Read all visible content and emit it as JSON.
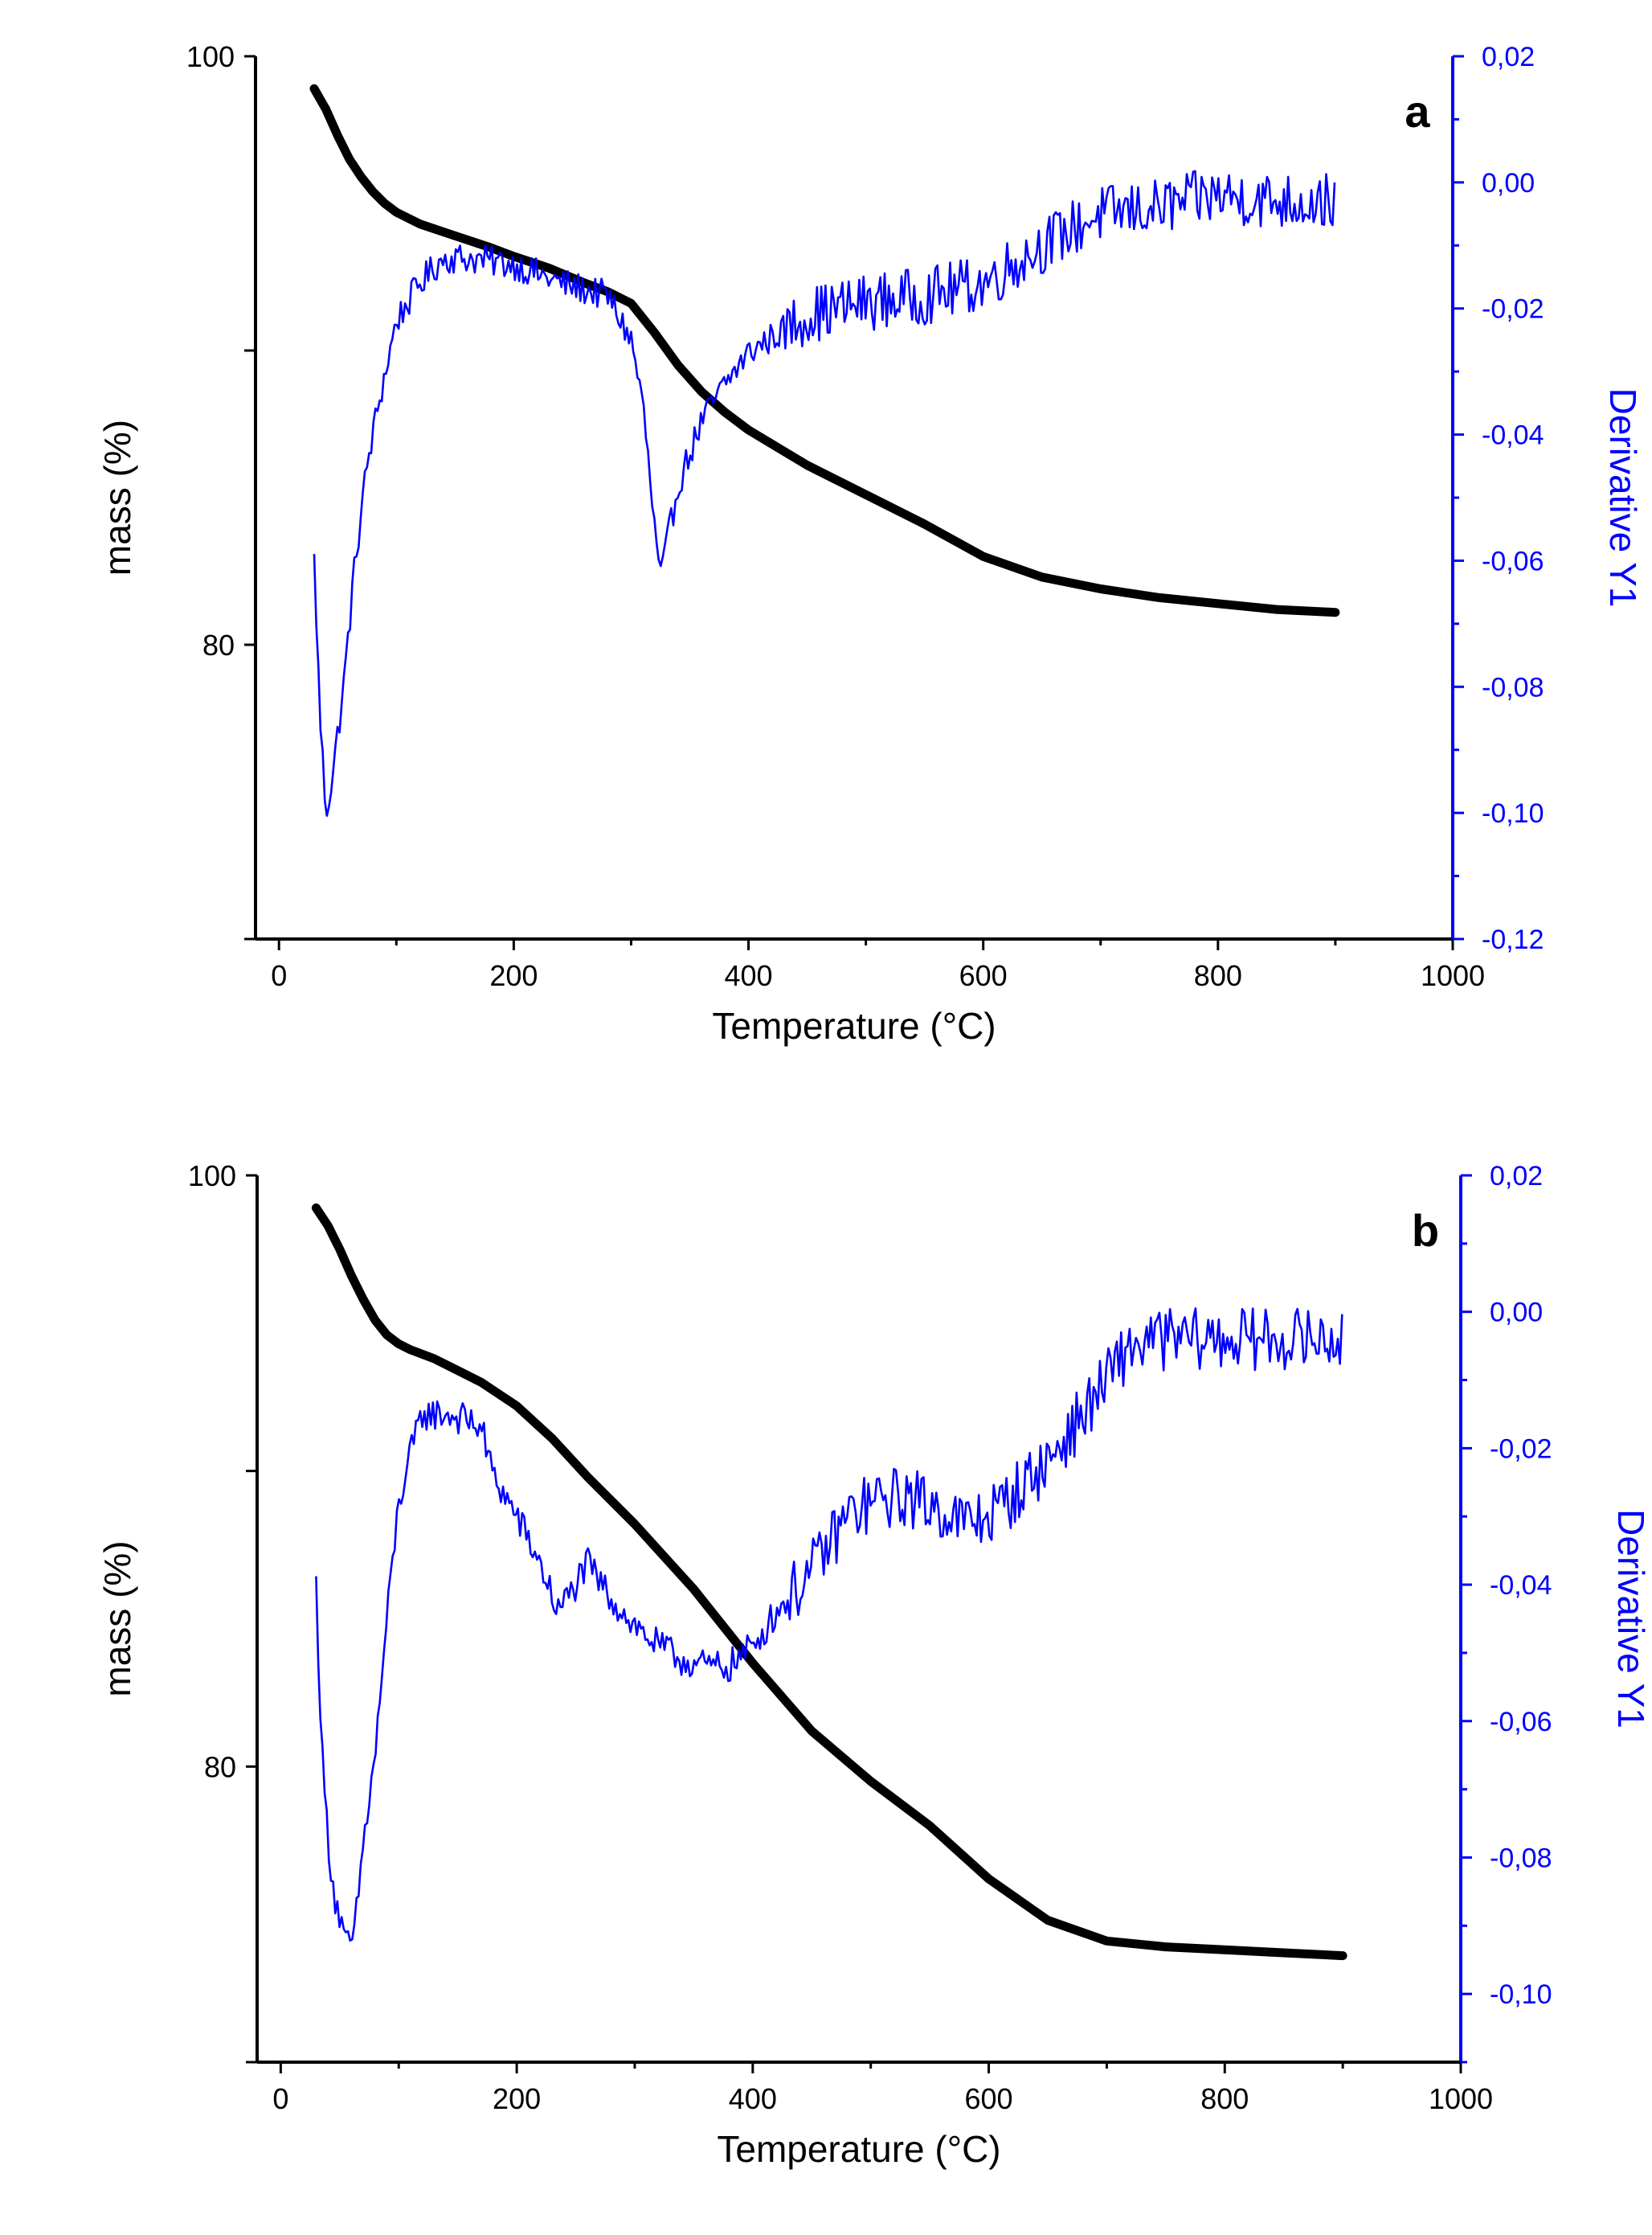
{
  "chart_data": [
    {
      "type": "line",
      "panel_label": "a",
      "xlabel": "Temperature (°C)",
      "ylabel": "mass (%)",
      "y2label": "Derivative Y1",
      "xlim": [
        -20,
        1000
      ],
      "ylim": [
        70,
        100
      ],
      "y2lim": [
        -0.12,
        0.02
      ],
      "x_ticks": [
        "0",
        "200",
        "400",
        "600",
        "800",
        "1000"
      ],
      "y_ticks": [
        "80",
        "100"
      ],
      "y2_ticks": [
        "0,02",
        "0,00",
        "-0,02",
        "-0,04",
        "-0,06",
        "-0,08",
        "-0,10",
        "-0,12"
      ],
      "colors": {
        "mass": "#000000",
        "derivative": "#0000ff"
      },
      "series": [
        {
          "name": "mass",
          "axis": "left",
          "x": [
            30,
            40,
            50,
            60,
            70,
            80,
            90,
            100,
            120,
            150,
            180,
            200,
            230,
            260,
            280,
            300,
            310,
            320,
            340,
            360,
            380,
            400,
            450,
            500,
            550,
            600,
            650,
            700,
            750,
            800,
            850,
            900
          ],
          "y": [
            98.9,
            98.2,
            97.3,
            96.5,
            95.9,
            95.4,
            95.0,
            94.7,
            94.3,
            93.9,
            93.5,
            93.2,
            92.8,
            92.3,
            92.0,
            91.6,
            91.1,
            90.6,
            89.5,
            88.6,
            87.9,
            87.3,
            86.1,
            85.1,
            84.1,
            83.0,
            82.3,
            81.9,
            81.6,
            81.4,
            81.2,
            81.1
          ]
        },
        {
          "name": "Derivative Y1",
          "axis": "right",
          "x": [
            30,
            35,
            40,
            45,
            55,
            65,
            75,
            85,
            100,
            120,
            140,
            160,
            200,
            240,
            280,
            300,
            310,
            320,
            325,
            330,
            340,
            360,
            380,
            400,
            450,
            500,
            550,
            600,
            650,
            700,
            750,
            800,
            850,
            900
          ],
          "y": [
            -0.06,
            -0.085,
            -0.1,
            -0.095,
            -0.08,
            -0.06,
            -0.045,
            -0.035,
            -0.022,
            -0.016,
            -0.012,
            -0.012,
            -0.013,
            -0.016,
            -0.018,
            -0.025,
            -0.035,
            -0.055,
            -0.063,
            -0.058,
            -0.048,
            -0.038,
            -0.032,
            -0.027,
            -0.021,
            -0.019,
            -0.018,
            -0.016,
            -0.01,
            -0.005,
            -0.004,
            -0.002,
            -0.003,
            -0.003
          ],
          "noise": 0.0035
        }
      ]
    },
    {
      "type": "line",
      "panel_label": "b",
      "xlabel": "Temperature (°C)",
      "ylabel": "mass (%)",
      "y2label": "Derivative Y1",
      "xlim": [
        -20,
        1000
      ],
      "ylim": [
        70,
        100
      ],
      "y2lim": [
        -0.11,
        0.02
      ],
      "x_ticks": [
        "0",
        "200",
        "400",
        "600",
        "800",
        "1000"
      ],
      "y_ticks": [
        "80",
        "100"
      ],
      "y2_ticks": [
        "0,02",
        "0,00",
        "-0,02",
        "-0,04",
        "-0,06",
        "-0,08",
        "-0,10"
      ],
      "colors": {
        "mass": "#000000",
        "derivative": "#0000ff"
      },
      "series": [
        {
          "name": "mass",
          "axis": "left",
          "x": [
            30,
            40,
            50,
            60,
            70,
            80,
            90,
            100,
            110,
            130,
            150,
            170,
            200,
            230,
            260,
            300,
            350,
            400,
            450,
            500,
            550,
            600,
            650,
            700,
            750,
            800,
            850,
            900
          ],
          "y": [
            98.9,
            98.3,
            97.5,
            96.6,
            95.8,
            95.1,
            94.6,
            94.3,
            94.1,
            93.8,
            93.4,
            93.0,
            92.2,
            91.1,
            89.8,
            88.2,
            86.0,
            83.5,
            81.2,
            79.5,
            78.0,
            76.2,
            74.8,
            74.1,
            73.9,
            73.8,
            73.7,
            73.6
          ]
        },
        {
          "name": "Derivative Y1",
          "axis": "right",
          "x": [
            30,
            35,
            40,
            45,
            55,
            62,
            70,
            80,
            90,
            100,
            110,
            120,
            140,
            160,
            170,
            180,
            200,
            220,
            235,
            250,
            260,
            280,
            300,
            320,
            340,
            360,
            380,
            400,
            420,
            450,
            480,
            500,
            530,
            560,
            580,
            600,
            620,
            650,
            680,
            700,
            720,
            750,
            800,
            850,
            900
          ],
          "y": [
            -0.04,
            -0.065,
            -0.077,
            -0.085,
            -0.093,
            -0.092,
            -0.078,
            -0.065,
            -0.045,
            -0.028,
            -0.021,
            -0.015,
            -0.015,
            -0.016,
            -0.017,
            -0.024,
            -0.03,
            -0.037,
            -0.044,
            -0.04,
            -0.037,
            -0.042,
            -0.046,
            -0.049,
            -0.051,
            -0.052,
            -0.052,
            -0.049,
            -0.044,
            -0.038,
            -0.03,
            -0.028,
            -0.027,
            -0.029,
            -0.031,
            -0.03,
            -0.027,
            -0.022,
            -0.015,
            -0.01,
            -0.005,
            -0.004,
            -0.004,
            -0.004,
            -0.004
          ],
          "noise": 0.0035
        }
      ]
    }
  ]
}
